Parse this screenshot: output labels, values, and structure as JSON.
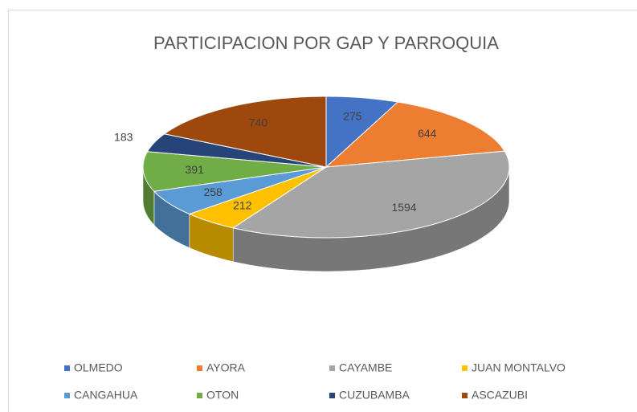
{
  "chart_data": {
    "type": "pie3d",
    "title": "PARTICIPACION POR GAP Y PARROQUIA",
    "categories": [
      "OLMEDO",
      "AYORA",
      "CAYAMBE",
      "JUAN MONTALVO",
      "CANGAHUA",
      "OTON",
      "CUZUBAMBA",
      "ASCAZUBI"
    ],
    "values": [
      275,
      644,
      1594,
      212,
      258,
      391,
      183,
      740
    ],
    "colors": [
      "#4472c4",
      "#ed7d31",
      "#a5a5a5",
      "#ffc000",
      "#5b9bd5",
      "#70ad47",
      "#264478",
      "#9e480e"
    ],
    "legend": "bottom"
  }
}
